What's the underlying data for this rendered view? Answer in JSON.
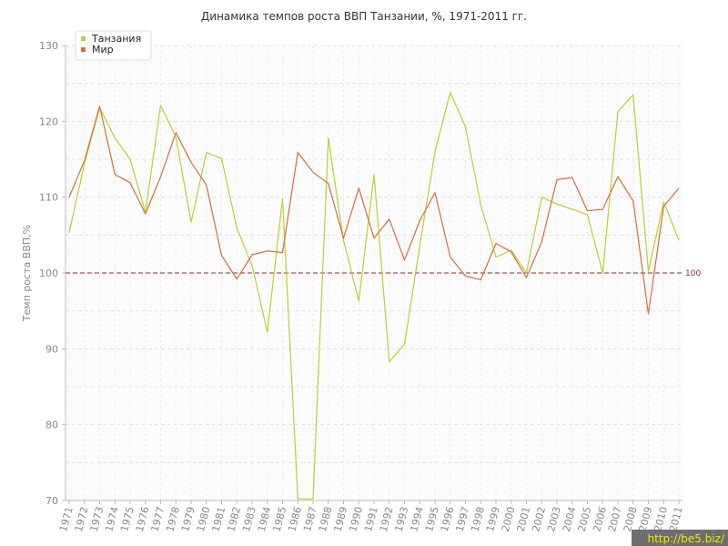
{
  "chart_data": {
    "type": "line",
    "title": "Динамика темпов роста ВВП Танзании, %, 1971-2011 гг.",
    "xlabel": "",
    "ylabel": "Темп роста ВВП,%",
    "categories": [
      "1971",
      "1972",
      "1973",
      "1974",
      "1975",
      "1976",
      "1977",
      "1978",
      "1979",
      "1980",
      "1981",
      "1982",
      "1983",
      "1984",
      "1985",
      "1986",
      "1987",
      "1988",
      "1989",
      "1990",
      "1991",
      "1992",
      "1993",
      "1994",
      "1995",
      "1996",
      "1997",
      "1998",
      "1999",
      "2000",
      "2001",
      "2002",
      "2003",
      "2004",
      "2005",
      "2006",
      "2007",
      "2008",
      "2009",
      "2010",
      "2011"
    ],
    "yticks": [
      "70",
      "80",
      "90",
      "100",
      "110",
      "120",
      "130"
    ],
    "ylim": [
      70,
      130
    ],
    "grid": true,
    "legend_position": "top-left",
    "reference_line": {
      "value": 100,
      "label": "100",
      "color": "#8b2f2f"
    },
    "series": [
      {
        "name": "Танзания",
        "color": "#b5d334",
        "values": [
          105.3,
          114.4,
          121.8,
          117.8,
          115.0,
          108.0,
          122.1,
          117.9,
          106.7,
          115.9,
          115.1,
          105.9,
          101.0,
          92.2,
          109.8,
          70.2,
          70.2,
          117.8,
          104.3,
          96.3,
          113.0,
          88.3,
          90.6,
          103.6,
          116.0,
          123.8,
          119.3,
          109.0,
          102.1,
          103.0,
          100.0,
          110.0,
          109.1,
          108.4,
          107.7,
          100.0,
          121.3,
          123.5,
          100.2,
          109.4,
          104.3
        ]
      },
      {
        "name": "Мир",
        "color": "#e06a3d",
        "values": [
          110.0,
          114.8,
          122.0,
          113.0,
          111.9,
          107.8,
          112.7,
          118.5,
          114.6,
          111.6,
          102.3,
          99.2,
          102.4,
          102.9,
          102.7,
          115.9,
          113.3,
          111.8,
          104.6,
          111.2,
          104.6,
          107.1,
          101.7,
          106.9,
          110.6,
          102.1,
          99.6,
          99.1,
          103.9,
          102.8,
          99.4,
          104.1,
          112.3,
          112.6,
          108.2,
          108.4,
          112.7,
          109.5,
          94.6,
          108.8,
          111.2
        ]
      }
    ]
  },
  "watermark": "http://be5.biz/"
}
